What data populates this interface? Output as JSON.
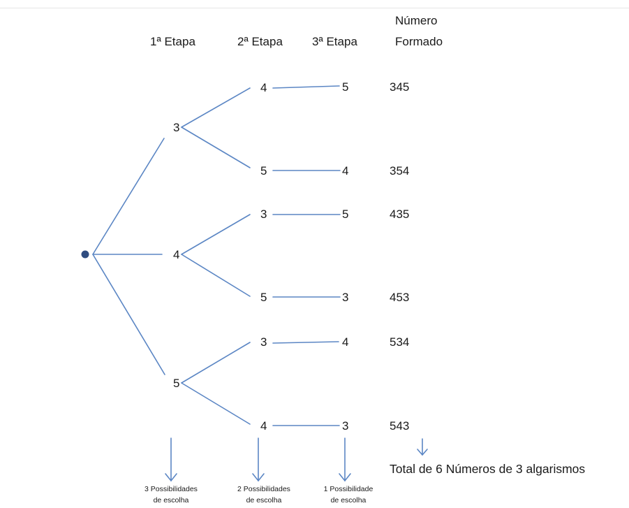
{
  "headers": {
    "stage1": "1ª Etapa",
    "stage2": "2ª Etapa",
    "stage3": "3ª Etapa",
    "formed_line1": "Número",
    "formed_line2": "Formado"
  },
  "tree": {
    "first": [
      "3",
      "4",
      "5"
    ],
    "second": [
      "4",
      "5",
      "3",
      "5",
      "3",
      "4"
    ],
    "third": [
      "5",
      "4",
      "5",
      "3",
      "4",
      "3"
    ],
    "formed": [
      "345",
      "354",
      "435",
      "453",
      "534",
      "543"
    ]
  },
  "footer": {
    "stage1_note_line1": "3 Possibilidades",
    "stage1_note_line2": "de escolha",
    "stage2_note_line1": "2 Possibilidades",
    "stage2_note_line2": "de escolha",
    "stage3_note_line1": "1 Possibilidade",
    "stage3_note_line2": "de escolha",
    "total": "Total de 6 Números de 3 algarismos"
  },
  "colors": {
    "line": "#5b86c4",
    "root_dot": "#2f4c80",
    "text": "#1a1a1a"
  }
}
